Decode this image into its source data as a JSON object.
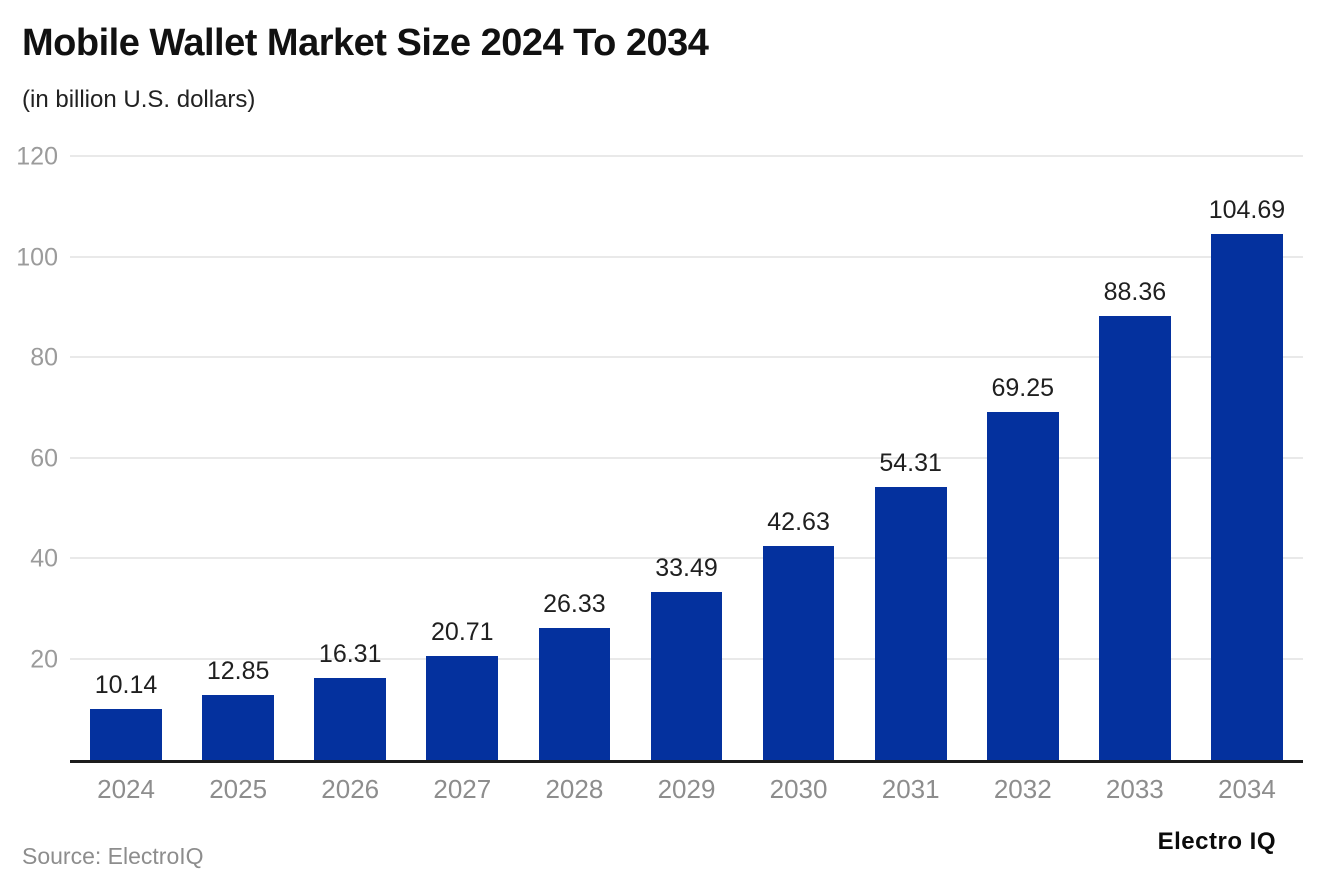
{
  "header": {
    "title": "Mobile Wallet Market Size 2024 To 2034",
    "subtitle": "(in billion U.S. dollars)"
  },
  "footer": {
    "source": "Source: ElectroIQ",
    "brand": "Electro IQ"
  },
  "colors": {
    "bar": "#04319e",
    "grid": "#e9e9e9",
    "axis_line": "#1c1c1c",
    "y_tick_text": "#9b9b9b",
    "x_tick_text": "#8d8d8d",
    "value_text": "#1f1f1f"
  },
  "chart_data": {
    "type": "bar",
    "title": "Mobile Wallet Market Size 2024 To 2034",
    "subtitle": "(in billion U.S. dollars)",
    "categories": [
      "2024",
      "2025",
      "2026",
      "2027",
      "2028",
      "2029",
      "2030",
      "2031",
      "2032",
      "2033",
      "2034"
    ],
    "values": [
      10.14,
      12.85,
      16.31,
      20.71,
      26.33,
      33.49,
      42.63,
      54.31,
      69.25,
      88.36,
      104.69
    ],
    "value_label_format": "2-decimals",
    "xlabel": "",
    "ylabel": "",
    "ylim": [
      0,
      120
    ],
    "yticks": [
      20,
      40,
      60,
      80,
      100,
      120
    ],
    "grid": true,
    "legend": false,
    "bar_color": "#04319e"
  }
}
